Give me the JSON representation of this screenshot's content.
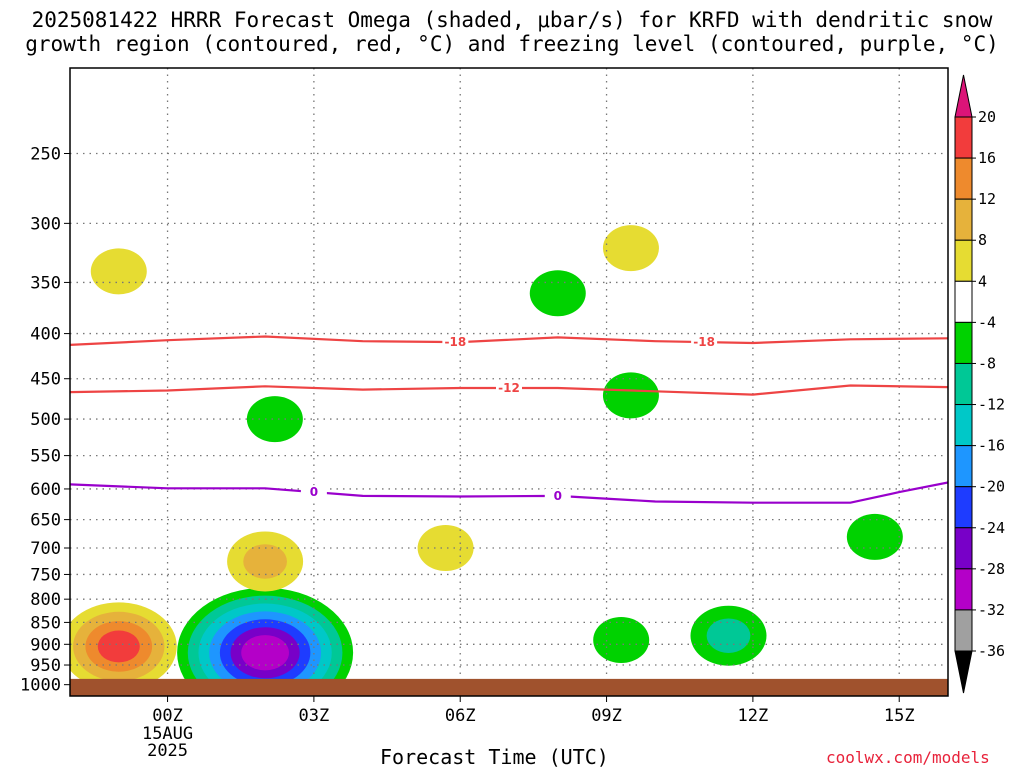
{
  "title": "2025081422 HRRR Forecast Omega (shaded, μbar/s) for KRFD with dendritic snow\ngrowth region (contoured, red, °C) and freezing level (contoured, purple, °C)",
  "x_axis_label": "Forecast Time (UTC)",
  "credit": "coolwx.com/models",
  "chart_data": {
    "type": "heatmap",
    "title": "2025081422 HRRR Forecast Omega (shaded, μbar/s) for KRFD with dendritic snow growth region (contoured, red, °C) and freezing level (contoured, purple, °C)",
    "xlabel": "Forecast Time (UTC)",
    "ylabel": "",
    "x_ticks": [
      "00Z",
      "03Z",
      "06Z",
      "09Z",
      "12Z",
      "15Z"
    ],
    "x_tick_hours": [
      2,
      5,
      8,
      11,
      14,
      17
    ],
    "x_first_tick_sublabels": [
      "15AUG",
      "2025"
    ],
    "xlim_hours": [
      0,
      18
    ],
    "y_ticks": [
      250,
      300,
      350,
      400,
      450,
      500,
      550,
      600,
      650,
      700,
      750,
      800,
      850,
      900,
      950,
      1000
    ],
    "ylim_hpa": [
      200,
      1030
    ],
    "y_scale": "log-pressure",
    "grid": "dotted",
    "colorbar": {
      "levels": [
        20,
        16,
        12,
        8,
        4,
        -4,
        -8,
        -12,
        -16,
        -20,
        -24,
        -28,
        -32,
        -36
      ],
      "bands": [
        {
          "range": [
            16,
            20
          ],
          "color": "#f23c3c"
        },
        {
          "range": [
            12,
            16
          ],
          "color": "#ee8a2d"
        },
        {
          "range": [
            8,
            12
          ],
          "color": "#e6b23b"
        },
        {
          "range": [
            4,
            8
          ],
          "color": "#e6dc32"
        },
        {
          "range": [
            -4,
            4
          ],
          "color": "#ffffff"
        },
        {
          "range": [
            -8,
            -4
          ],
          "color": "#00d200"
        },
        {
          "range": [
            -12,
            -8
          ],
          "color": "#00c896"
        },
        {
          "range": [
            -16,
            -12
          ],
          "color": "#00c8c8"
        },
        {
          "range": [
            -20,
            -16
          ],
          "color": "#1e96ff"
        },
        {
          "range": [
            -24,
            -20
          ],
          "color": "#1e3cff"
        },
        {
          "range": [
            -28,
            -24
          ],
          "color": "#7800c8"
        },
        {
          "range": [
            -32,
            -28
          ],
          "color": "#b400c8"
        },
        {
          "range": [
            -36,
            -32
          ],
          "color": "#a0a0a0"
        }
      ],
      "over_color": "#dc1478",
      "under_color": "#000000"
    },
    "contours": [
      {
        "name": "-18",
        "color": "#ee4444",
        "label": "-18",
        "x": [
          0,
          2,
          4,
          6,
          8,
          10,
          12,
          14,
          16,
          18
        ],
        "y": [
          412,
          407,
          403,
          408,
          409,
          404,
          408,
          410,
          406,
          405
        ],
        "label_hours": [
          7.9,
          13.0
        ]
      },
      {
        "name": "-12",
        "color": "#ee4444",
        "label": "-12",
        "x": [
          0,
          2,
          4,
          6,
          8,
          10,
          12,
          14,
          16,
          18
        ],
        "y": [
          466,
          464,
          459,
          463,
          461,
          461,
          465,
          469,
          458,
          460
        ],
        "label_hours": [
          9.0
        ]
      },
      {
        "name": "0",
        "color": "#9900cc",
        "label": "0",
        "x": [
          0,
          2,
          4,
          6,
          8,
          10,
          12,
          14,
          16,
          17,
          18
        ],
        "y": [
          593,
          599,
          599,
          611,
          612,
          611,
          620,
          622,
          622,
          605,
          590
        ],
        "label_hours": [
          5.0,
          10.0
        ]
      }
    ],
    "omega_features": [
      {
        "sign": "positive",
        "center_hour": 1.0,
        "center_hpa": 340,
        "max": 4
      },
      {
        "sign": "positive",
        "center_hour": 1.0,
        "center_hpa": 905,
        "max": 16
      },
      {
        "sign": "negative",
        "center_hour": 4.0,
        "center_hpa": 920,
        "min": -28
      },
      {
        "sign": "positive",
        "center_hour": 4.0,
        "center_hpa": 725,
        "max": 8
      },
      {
        "sign": "negative",
        "center_hour": 4.2,
        "center_hpa": 500,
        "min": -4
      },
      {
        "sign": "negative",
        "center_hour": 10.0,
        "center_hpa": 360,
        "min": -4
      },
      {
        "sign": "positive",
        "center_hour": 11.5,
        "center_hpa": 320,
        "max": 4
      },
      {
        "sign": "negative",
        "center_hour": 11.5,
        "center_hpa": 470,
        "min": -4
      },
      {
        "sign": "negative",
        "center_hour": 11.3,
        "center_hpa": 890,
        "min": -4
      },
      {
        "sign": "negative",
        "center_hour": 13.5,
        "center_hpa": 880,
        "min": -8
      },
      {
        "sign": "negative",
        "center_hour": 16.5,
        "center_hpa": 680,
        "min": -4
      },
      {
        "sign": "positive",
        "center_hour": 7.7,
        "center_hpa": 700,
        "max": 4
      }
    ],
    "terrain_top_hpa": 985,
    "terrain_color": "#a0522d"
  }
}
